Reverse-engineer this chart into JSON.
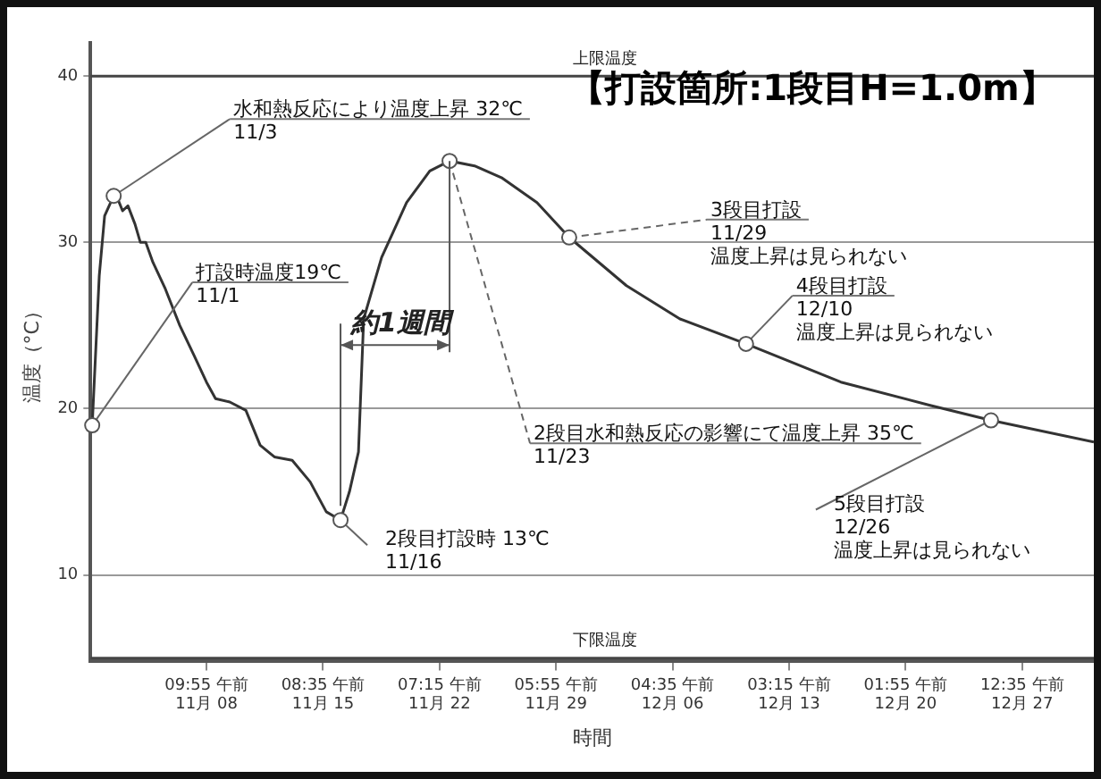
{
  "chart_data": {
    "type": "line",
    "title": "【打設箇所:1段目H=1.0m】",
    "xlabel": "時間",
    "ylabel": "温度（°C）",
    "x": [
      "--11-01T14:24",
      "--11-02T00:29",
      "--11-02T08:10",
      "--11-02T21:07",
      "--11-03T02:10",
      "--11-03T09:50",
      "--11-03T17:31",
      "--11-04T03:36",
      "--11-04T11:17",
      "--11-04T18:58",
      "--11-05T05:17",
      "--11-05T23:02",
      "--11-06T19:41",
      "--11-07T16:05",
      "--11-08T09:50",
      "--11-08T22:48",
      "--11-09T19:12",
      "--11-10T18:14",
      "--11-11T14:38",
      "--11-12T11:02",
      "--11-13T12:29",
      "--11-14T14:10",
      "--11-15T13:12",
      "--11-16T09:36",
      "--11-16T22:19",
      "--11-17T11:17",
      "--11-17T18:43",
      "--11-18T20:24",
      "--11-20T08:10",
      "--11-21T17:17",
      "--11-22T21:36",
      "--11-24T09:22",
      "--11-25T23:46",
      "--11-28T02:38",
      "--11-30T00:43",
      "--12-03T10:34",
      "--12-06T15:07",
      "--12-10T13:41",
      "--12-16T05:17",
      "--12-21T12:58",
      "--12-25T04:05",
      "--12-31T07:12"
    ],
    "values": [
      19,
      28,
      31.6,
      32.8,
      32.7,
      31.9,
      32.2,
      31.1,
      30,
      30,
      28.8,
      27.2,
      25,
      23.2,
      21.6,
      20.6,
      20.4,
      19.9,
      17.8,
      17.1,
      16.9,
      15.6,
      13.8,
      13.3,
      15,
      17.4,
      25.4,
      29.1,
      32.4,
      34.3,
      34.9,
      34.6,
      33.9,
      32.4,
      30.3,
      27.4,
      25.4,
      23.9,
      21.6,
      20.2,
      19.3,
      18
    ],
    "color": "#333333",
    "marker": "none",
    "line_style": "solid",
    "grid": "y",
    "xlim": [
      "--11-01T12:00",
      "--12-31T07:12"
    ],
    "ylim": [
      4.8,
      42
    ],
    "xticks": [
      {
        "value": "--11-08T09:55",
        "label": "09:55 午前\n11月 08"
      },
      {
        "value": "--11-15T08:35",
        "label": "08:35 午前\n11月 15"
      },
      {
        "value": "--11-22T07:15",
        "label": "07:15 午前\n11月 22"
      },
      {
        "value": "--11-29T05:55",
        "label": "05:55 午前\n11月 29"
      },
      {
        "value": "--12-06T04:35",
        "label": "04:35 午前\n12月 06"
      },
      {
        "value": "--12-13T03:15",
        "label": "03:15 午前\n12月 13"
      },
      {
        "value": "--12-20T01:55",
        "label": "01:55 午前\n12月 20"
      },
      {
        "value": "--12-27T00:35",
        "label": "12:35 午前\n12月 27"
      }
    ],
    "yticks": [
      10,
      20,
      30,
      40
    ],
    "ref_lines": [
      {
        "axis": "y",
        "value": 40,
        "label": "上限温度",
        "color": "#444444"
      },
      {
        "axis": "y",
        "value": 5,
        "label": "下限温度",
        "color": "#444444"
      }
    ],
    "annotations": [
      {
        "text": "打設時温度19℃\n11/1",
        "x": "--11-01T14:24",
        "y": 19
      },
      {
        "text": "水和熱反応により温度上昇 32℃\n11/3",
        "x": "--11-02T21:07",
        "y": 32.8
      },
      {
        "text": "2段目打設時 13℃\n11/16",
        "x": "--11-16T09:36",
        "y": 13.3
      },
      {
        "text": "2段目水和熱反応の影響にて温度上昇 35℃\n11/23",
        "x": "--11-22T21:36",
        "y": 34.9
      },
      {
        "text": "3段目打設\n11/29\n温度上昇は見られない",
        "x": "--11-30T00:43",
        "y": 30.3
      },
      {
        "text": "4段目打設\n12/10\n温度上昇は見られない",
        "x": "--12-10T13:41",
        "y": 23.9
      },
      {
        "text": "5段目打設\n12/26\n温度上昇は見られない",
        "x": "--12-25T04:05",
        "y": 19.3
      },
      {
        "text": "約1週間",
        "x": "--11-16T09:36",
        "y": 13.3
      }
    ]
  }
}
